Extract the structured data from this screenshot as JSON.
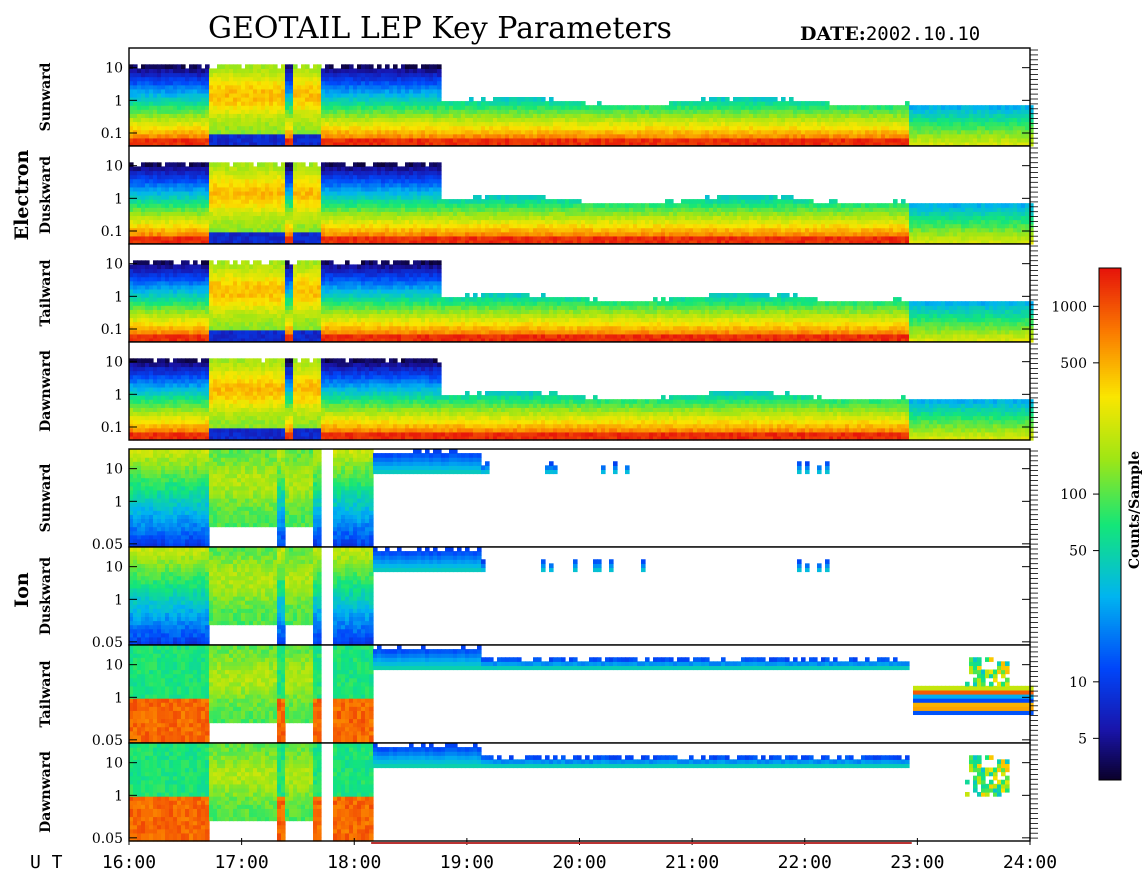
{
  "title": "GEOTAIL LEP Key Parameters",
  "date_label": "DATE:",
  "date_value": "2002.10.10",
  "x_axis_label": "U T",
  "groups": [
    {
      "name": "Electron",
      "panels": [
        "Sunward",
        "Duskward",
        "Tailward",
        "Dawnward"
      ]
    },
    {
      "name": "Ion",
      "panels": [
        "Sunward",
        "Duskward",
        "Tailward",
        "Dawnward"
      ]
    }
  ],
  "colorbar": {
    "label": "Counts/Sample",
    "ticks": [
      "1000",
      "500",
      "100",
      "50",
      "10",
      "5"
    ]
  },
  "chart_data": {
    "type": "heatmap",
    "title": "GEOTAIL LEP Key Parameters",
    "date": "2002.10.10",
    "x_ticks": [
      "16:00",
      "17:00",
      "18:00",
      "19:00",
      "20:00",
      "21:00",
      "22:00",
      "23:00",
      "24:00"
    ],
    "x_range_hours": [
      16,
      24
    ],
    "electron_y_ticks": [
      "10",
      "1",
      "0.1"
    ],
    "electron_y_range_kev": [
      0.04,
      40
    ],
    "ion_y_ticks": [
      "10",
      "1",
      "0.05"
    ],
    "ion_y_range_kev": [
      0.04,
      40
    ],
    "y_scale": "log",
    "colorbar_range": [
      3,
      1600
    ],
    "colorbar_scale": "log",
    "panels": [
      {
        "species": "Electron",
        "direction": "Sunward"
      },
      {
        "species": "Electron",
        "direction": "Duskward"
      },
      {
        "species": "Electron",
        "direction": "Tailward"
      },
      {
        "species": "Electron",
        "direction": "Dawnward"
      },
      {
        "species": "Ion",
        "direction": "Sunward"
      },
      {
        "species": "Ion",
        "direction": "Duskward"
      },
      {
        "species": "Ion",
        "direction": "Tailward"
      },
      {
        "species": "Ion",
        "direction": "Dawnward"
      }
    ]
  }
}
